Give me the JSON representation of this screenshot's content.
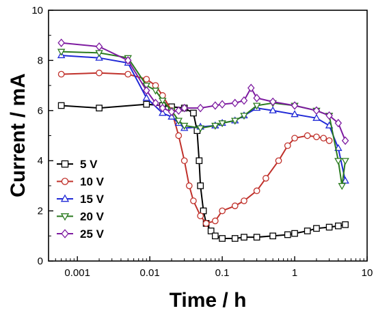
{
  "chart_data": {
    "type": "scatter",
    "title": "",
    "xlabel": "Time / h",
    "ylabel": "Current / mA",
    "x_scale": "log",
    "xlim": [
      0.0004,
      10
    ],
    "ylim": [
      0,
      10
    ],
    "x_ticks": [
      {
        "value": 0.001,
        "label": "0.001"
      },
      {
        "value": 0.01,
        "label": "0.01"
      },
      {
        "value": 0.1,
        "label": "0.1"
      },
      {
        "value": 1,
        "label": "1"
      },
      {
        "value": 10,
        "label": "10"
      }
    ],
    "y_ticks": [
      {
        "value": 0,
        "label": "0"
      },
      {
        "value": 2,
        "label": "2"
      },
      {
        "value": 4,
        "label": "4"
      },
      {
        "value": 6,
        "label": "6"
      },
      {
        "value": 8,
        "label": "8"
      },
      {
        "value": 10,
        "label": "10"
      }
    ],
    "grid": false,
    "legend_position": "lower-left",
    "series": [
      {
        "name": "5 V",
        "color": "#000000",
        "marker": "square",
        "x": [
          0.0006,
          0.002,
          0.009,
          0.015,
          0.02,
          0.03,
          0.04,
          0.045,
          0.048,
          0.05,
          0.055,
          0.06,
          0.07,
          0.08,
          0.1,
          0.15,
          0.2,
          0.3,
          0.5,
          0.8,
          1.0,
          1.5,
          2.0,
          3.0,
          4.0,
          5.0
        ],
        "y": [
          6.2,
          6.1,
          6.25,
          6.2,
          6.15,
          6.1,
          5.9,
          5.2,
          4.0,
          3.0,
          2.0,
          1.5,
          1.2,
          1.0,
          0.9,
          0.9,
          0.95,
          0.95,
          1.0,
          1.05,
          1.1,
          1.2,
          1.3,
          1.35,
          1.4,
          1.45
        ]
      },
      {
        "name": "10 V",
        "color": "#c0302a",
        "marker": "circle",
        "x": [
          0.0006,
          0.002,
          0.005,
          0.009,
          0.012,
          0.015,
          0.02,
          0.025,
          0.03,
          0.035,
          0.04,
          0.05,
          0.06,
          0.08,
          0.1,
          0.15,
          0.2,
          0.3,
          0.4,
          0.6,
          0.8,
          1.0,
          1.5,
          2.0,
          2.5,
          3.0
        ],
        "y": [
          7.45,
          7.5,
          7.45,
          7.25,
          7.0,
          6.6,
          6.0,
          5.0,
          4.0,
          3.0,
          2.4,
          1.8,
          1.5,
          1.6,
          2.0,
          2.2,
          2.4,
          2.8,
          3.3,
          4.0,
          4.6,
          4.9,
          5.0,
          4.95,
          4.9,
          4.8
        ]
      },
      {
        "name": "15 V",
        "color": "#1f28d6",
        "marker": "triangle-up",
        "x": [
          0.0006,
          0.002,
          0.005,
          0.009,
          0.015,
          0.02,
          0.025,
          0.03,
          0.05,
          0.08,
          0.1,
          0.15,
          0.2,
          0.3,
          0.5,
          1.0,
          2.0,
          3.0,
          4.0,
          5.0
        ],
        "y": [
          8.2,
          8.1,
          7.9,
          6.5,
          5.9,
          5.75,
          5.5,
          5.3,
          5.35,
          5.4,
          5.5,
          5.6,
          5.8,
          6.1,
          6.0,
          5.85,
          5.7,
          5.4,
          4.5,
          3.2
        ]
      },
      {
        "name": "20 V",
        "color": "#2a7a1e",
        "marker": "triangle-down",
        "x": [
          0.0006,
          0.002,
          0.005,
          0.009,
          0.012,
          0.015,
          0.02,
          0.025,
          0.03,
          0.05,
          0.08,
          0.1,
          0.15,
          0.2,
          0.3,
          0.5,
          1.0,
          2.0,
          3.0,
          4.0,
          4.5,
          5.0
        ],
        "y": [
          8.35,
          8.3,
          8.1,
          7.0,
          6.8,
          6.4,
          6.0,
          5.6,
          5.4,
          5.3,
          5.4,
          5.5,
          5.6,
          5.8,
          6.2,
          6.3,
          6.2,
          6.0,
          5.8,
          4.0,
          3.0,
          4.0
        ]
      },
      {
        "name": "25 V",
        "color": "#7d1aa0",
        "marker": "diamond",
        "x": [
          0.0006,
          0.002,
          0.005,
          0.009,
          0.012,
          0.015,
          0.02,
          0.025,
          0.03,
          0.05,
          0.08,
          0.1,
          0.15,
          0.2,
          0.25,
          0.3,
          0.5,
          1.0,
          2.0,
          3.0,
          4.0,
          5.0
        ],
        "y": [
          8.7,
          8.55,
          8.0,
          6.8,
          6.3,
          6.1,
          5.95,
          6.0,
          6.1,
          6.1,
          6.2,
          6.25,
          6.3,
          6.4,
          6.9,
          6.5,
          6.35,
          6.2,
          6.0,
          5.8,
          5.5,
          4.8
        ]
      }
    ]
  }
}
